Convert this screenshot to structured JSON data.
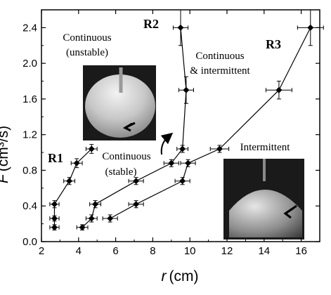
{
  "chart_data": {
    "type": "line",
    "xlabel_var": "r",
    "xlabel_unit": "(cm)",
    "ylabel_var": "F",
    "ylabel_unit": "(cm³/s)",
    "xlim": [
      2,
      17
    ],
    "ylim": [
      0,
      2.6
    ],
    "x_ticks": [
      2,
      4,
      6,
      8,
      10,
      12,
      14,
      16
    ],
    "y_ticks": [
      0.0,
      0.4,
      0.8,
      1.2,
      1.6,
      2.0,
      2.4
    ],
    "grid": false,
    "series": [
      {
        "name": "R1",
        "points": [
          {
            "x": 2.7,
            "y": 0.16,
            "xerr": 0.25,
            "yerr": 0.03
          },
          {
            "x": 2.7,
            "y": 0.26,
            "xerr": 0.25,
            "yerr": 0.03
          },
          {
            "x": 2.7,
            "y": 0.42,
            "xerr": 0.25,
            "yerr": 0.04
          },
          {
            "x": 3.5,
            "y": 0.68,
            "xerr": 0.3,
            "yerr": 0.04
          },
          {
            "x": 3.9,
            "y": 0.88,
            "xerr": 0.3,
            "yerr": 0.05
          },
          {
            "x": 4.7,
            "y": 1.04,
            "xerr": 0.3,
            "yerr": 0.05
          }
        ]
      },
      {
        "name": "R2",
        "points": [
          {
            "x": 4.2,
            "y": 0.16,
            "xerr": 0.3,
            "yerr": 0.03
          },
          {
            "x": 4.7,
            "y": 0.26,
            "xerr": 0.3,
            "yerr": 0.04
          },
          {
            "x": 4.9,
            "y": 0.42,
            "xerr": 0.3,
            "yerr": 0.04
          },
          {
            "x": 7.1,
            "y": 0.68,
            "xerr": 0.4,
            "yerr": 0.04
          },
          {
            "x": 9.0,
            "y": 0.88,
            "xerr": 0.4,
            "yerr": 0.04
          },
          {
            "x": 9.6,
            "y": 1.04,
            "xerr": 0.3,
            "yerr": 0.04
          },
          {
            "x": 9.8,
            "y": 1.7,
            "xerr": 0.4,
            "yerr": 0.15
          },
          {
            "x": 9.5,
            "y": 2.4,
            "xerr": 0.4,
            "yerr": 0.2
          }
        ]
      },
      {
        "name": "R3",
        "points": [
          {
            "x": 5.7,
            "y": 0.26,
            "xerr": 0.4,
            "yerr": 0.04
          },
          {
            "x": 7.1,
            "y": 0.42,
            "xerr": 0.4,
            "yerr": 0.04
          },
          {
            "x": 9.6,
            "y": 0.68,
            "xerr": 0.4,
            "yerr": 0.04
          },
          {
            "x": 9.9,
            "y": 0.88,
            "xerr": 0.4,
            "yerr": 0.04
          },
          {
            "x": 11.6,
            "y": 1.04,
            "xerr": 0.5,
            "yerr": 0.04
          },
          {
            "x": 14.8,
            "y": 1.7,
            "xerr": 0.7,
            "yerr": 0.1
          },
          {
            "x": 16.5,
            "y": 2.4,
            "xerr": 0.7,
            "yerr": 0.2
          }
        ]
      }
    ],
    "annotations": {
      "r1_label": "R1",
      "r2_label": "R2",
      "r3_label": "R3",
      "continuous_unstable_1": "Continuous",
      "continuous_unstable_2": "(unstable)",
      "continuous_intermittent_1": "Continuous",
      "continuous_intermittent_2": "& intermittent",
      "continuous_stable_1": "Continuous",
      "continuous_stable_2": "(stable)",
      "intermittent": "Intermittent"
    },
    "colors": {
      "marker": "#000000",
      "line": "#000000"
    }
  }
}
